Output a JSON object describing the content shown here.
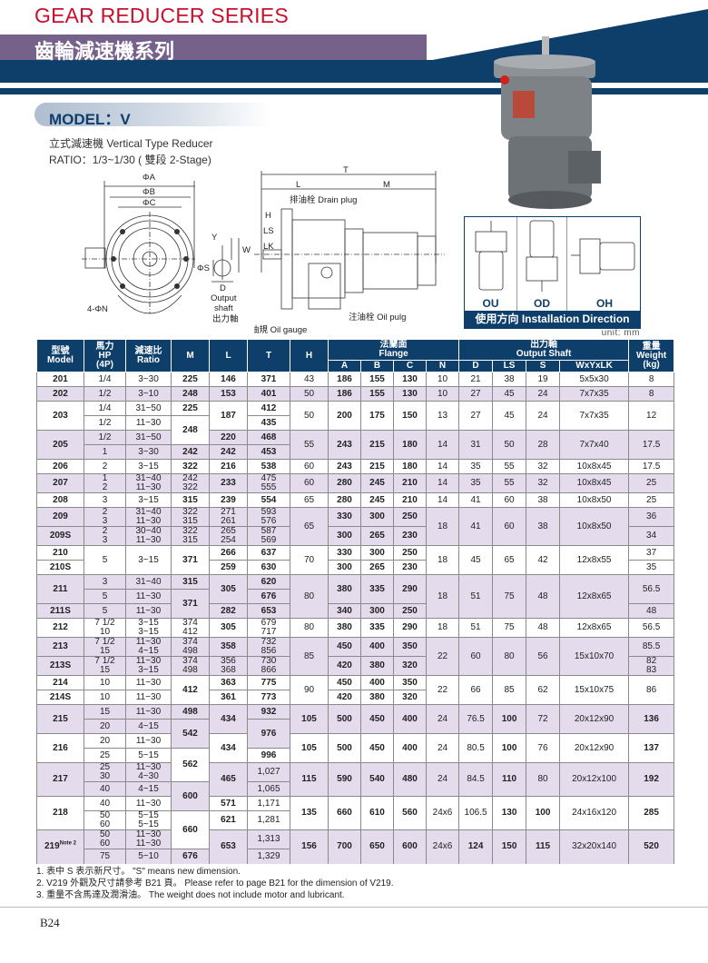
{
  "header": {
    "title_en": "GEAR REDUCER SERIES",
    "title_zh": "齒輪減速機系列"
  },
  "model": {
    "title": "MODEL：V",
    "subtitle": "立式減速機 Vertical Type Reducer",
    "ratio": "RATIO：1/3~1/30 ( 雙段 2-Stage)"
  },
  "diagram": {
    "front": {
      "phiA": "ΦA",
      "phiB": "ΦB",
      "phiC": "ΦC",
      "holes": "4-ΦN"
    },
    "shaft": {
      "Y": "Y",
      "W": "W",
      "S": "ΦS",
      "D": "D",
      "label_en1": "Output",
      "label_en2": "shaft",
      "label_zh": "出力軸"
    },
    "side": {
      "T": "T",
      "L": "L",
      "M": "M",
      "H": "H",
      "LS": "LS",
      "LK": "LK",
      "drain": "排油栓 Drain plug",
      "gauge": "油規 Oil gauge",
      "pulg": "注油栓 Oil pulg"
    }
  },
  "installation": {
    "codes": [
      "OU",
      "OD",
      "OH"
    ],
    "title": "使用方向 Installation Direction"
  },
  "unit": "unit: mm",
  "colors": {
    "navy": "#0e3f6b",
    "purple": "#76618a",
    "red": "#c8102e",
    "shade": "#e4dced"
  },
  "table": {
    "header_top": [
      "型號\nModel",
      "馬力\nHP\n(4P)",
      "減速比\nRatio",
      "M",
      "L",
      "T",
      "H",
      "法蘭面\nFlange",
      "出力軸\nOutput Shaft",
      "重量\nWeight\n(kg)"
    ],
    "header_sub": [
      "A",
      "B",
      "C",
      "N",
      "D",
      "LS",
      "S",
      "WxYxLK"
    ],
    "rows": [
      {
        "s": 0,
        "c": [
          "201",
          "1/4",
          "3~30",
          "225",
          "146",
          "371",
          "43",
          "186",
          "155",
          "130",
          "10",
          "21",
          "38",
          "19",
          "5x5x30",
          "8"
        ]
      },
      {
        "s": 1,
        "c": [
          "202",
          "1/2",
          "3~10",
          "248",
          "153",
          "401",
          "50",
          "186",
          "155",
          "130",
          "10",
          "27",
          "45",
          "24",
          "7x7x35",
          "8"
        ]
      },
      {
        "s": 0,
        "c": [
          [
            "203",
            2
          ],
          "1/4",
          "31~50",
          "225",
          [
            "187",
            2
          ],
          "412",
          [
            "50",
            2
          ],
          [
            "200",
            2
          ],
          [
            "175",
            2
          ],
          [
            "150",
            2
          ],
          [
            "13",
            2
          ],
          [
            "27",
            2
          ],
          [
            "45",
            2
          ],
          [
            "24",
            2
          ],
          [
            "7x7x35",
            2
          ],
          [
            "12",
            2
          ]
        ]
      },
      {
        "s": 0,
        "c": [
          "1/2",
          "11~30",
          [
            "248",
            2
          ],
          "435"
        ]
      },
      {
        "s": 1,
        "c": [
          [
            "205",
            2
          ],
          "1/2",
          "31~50",
          "220",
          "468",
          [
            "55",
            2
          ],
          [
            "243",
            2
          ],
          [
            "215",
            2
          ],
          [
            "180",
            2
          ],
          [
            "14",
            2
          ],
          [
            "31",
            2
          ],
          [
            "50",
            2
          ],
          [
            "28",
            2
          ],
          [
            "7x7x40",
            2
          ],
          [
            "17.5",
            2
          ]
        ]
      },
      {
        "s": 1,
        "c": [
          "1",
          "3~30",
          "242",
          "242",
          "453"
        ]
      },
      {
        "s": 0,
        "c": [
          "206",
          "2",
          "3~15",
          "322",
          "216",
          "538",
          "60",
          "243",
          "215",
          "180",
          "14",
          "35",
          "55",
          "32",
          "10x8x45",
          "17.5"
        ]
      },
      {
        "s": 1,
        "c": [
          "207",
          "1\n2",
          "31~40\n11~30",
          "242\n322",
          "233",
          "475\n555",
          "60",
          "280",
          "245",
          "210",
          "14",
          "35",
          "55",
          "32",
          "10x8x45",
          "25"
        ]
      },
      {
        "s": 0,
        "c": [
          "208",
          "3",
          "3~15",
          "315",
          "239",
          "554",
          "65",
          "280",
          "245",
          "210",
          "14",
          "41",
          "60",
          "38",
          "10x8x50",
          "25"
        ]
      },
      {
        "s": 1,
        "c": [
          "209",
          "2\n3",
          "31~40\n11~30",
          "322\n315",
          "271\n261",
          "593\n576",
          [
            "65",
            2
          ],
          "330",
          "300",
          "250",
          [
            "18",
            2
          ],
          [
            "41",
            2
          ],
          [
            "60",
            2
          ],
          [
            "38",
            2
          ],
          [
            "10x8x50",
            2
          ],
          "36"
        ]
      },
      {
        "s": 1,
        "c": [
          "209S",
          "2\n3",
          "30~40\n11~30",
          "322\n315",
          "265\n254",
          "587\n569",
          "300",
          "265",
          "230",
          "34"
        ]
      },
      {
        "s": 0,
        "c": [
          "210",
          [
            "5",
            2
          ],
          [
            "3~15",
            2
          ],
          [
            "371",
            2
          ],
          "266",
          "637",
          [
            "70",
            2
          ],
          "330",
          "300",
          "250",
          [
            "18",
            2
          ],
          [
            "45",
            2
          ],
          [
            "65",
            2
          ],
          [
            "42",
            2
          ],
          [
            "12x8x55",
            2
          ],
          "37"
        ]
      },
      {
        "s": 0,
        "c": [
          "210S",
          "259",
          "630",
          "300",
          "265",
          "230",
          "35"
        ]
      },
      {
        "s": 1,
        "c": [
          [
            "211",
            2
          ],
          "3",
          "31~40",
          "315",
          [
            "305",
            2
          ],
          "620",
          [
            "80",
            3
          ],
          [
            "380",
            2
          ],
          [
            "335",
            2
          ],
          [
            "290",
            2
          ],
          [
            "18",
            3
          ],
          [
            "51",
            3
          ],
          [
            "75",
            3
          ],
          [
            "48",
            3
          ],
          [
            "12x8x65",
            3
          ],
          [
            "56.5",
            2
          ]
        ]
      },
      {
        "s": 1,
        "c": [
          "5",
          "11~30",
          [
            "371",
            2
          ],
          "676"
        ]
      },
      {
        "s": 1,
        "c": [
          "211S",
          "5",
          "11~30",
          "282",
          "653",
          "340",
          "300",
          "250",
          "48"
        ]
      },
      {
        "s": 0,
        "c": [
          "212",
          "7 1/2\n10",
          "3~15\n3~15",
          "374\n412",
          "305",
          "679\n717",
          "80",
          "380",
          "335",
          "290",
          "18",
          "51",
          "75",
          "48",
          "12x8x65",
          "56.5"
        ]
      },
      {
        "s": 1,
        "c": [
          "213",
          "7 1/2\n15",
          "11~30\n4~15",
          "374\n498",
          "358",
          "732\n856",
          [
            "85",
            2
          ],
          "450",
          "400",
          "350",
          [
            "22",
            2
          ],
          [
            "60",
            2
          ],
          [
            "80",
            2
          ],
          [
            "56",
            2
          ],
          [
            "15x10x70",
            2
          ],
          "85.5"
        ]
      },
      {
        "s": 1,
        "c": [
          "213S",
          "7 1/2\n15",
          "11~30\n3~15",
          "374\n498",
          "356\n368",
          "730\n866",
          "420",
          "380",
          "320",
          "82\n83"
        ]
      },
      {
        "s": 0,
        "c": [
          "214",
          "10",
          "11~30",
          [
            "412",
            2
          ],
          "363",
          "775",
          [
            "90",
            2
          ],
          "450",
          "400",
          "350",
          [
            "22",
            2
          ],
          [
            "66",
            2
          ],
          [
            "85",
            2
          ],
          [
            "62",
            2
          ],
          [
            "15x10x75",
            2
          ],
          [
            "86",
            2
          ]
        ]
      },
      {
        "s": 0,
        "c": [
          "214S",
          "10",
          "11~30",
          "361",
          "773",
          "420",
          "380",
          "320"
        ]
      },
      {
        "s": 1,
        "c": [
          [
            "215",
            2
          ],
          "15",
          "11~30",
          "498",
          [
            "434",
            2
          ],
          "932",
          [
            "105",
            2
          ],
          [
            "500",
            2
          ],
          [
            "450",
            2
          ],
          [
            "400",
            2
          ],
          [
            "24",
            2
          ],
          [
            "76.5",
            2
          ],
          [
            "100",
            2
          ],
          [
            "72",
            2
          ],
          [
            "20x12x90",
            2
          ],
          [
            "136",
            2
          ]
        ]
      },
      {
        "s": 1,
        "c": [
          "20",
          "4~15",
          [
            "542",
            2
          ],
          [
            "976",
            2
          ]
        ]
      },
      {
        "s": 0,
        "c": [
          [
            "216",
            2
          ],
          "20",
          "11~30",
          [
            "434",
            2
          ],
          [
            "105",
            2
          ],
          [
            "500",
            2
          ],
          [
            "450",
            2
          ],
          [
            "400",
            2
          ],
          [
            "24",
            2
          ],
          [
            "80.5",
            2
          ],
          [
            "100",
            2
          ],
          [
            "76",
            2
          ],
          [
            "20x12x90",
            2
          ],
          [
            "137",
            2
          ]
        ]
      },
      {
        "s": 0,
        "c": [
          "25",
          "5~15",
          [
            "562",
            2
          ],
          "996"
        ]
      },
      {
        "s": 1,
        "c": [
          [
            "217",
            2
          ],
          "25\n30",
          "11~30\n4~30",
          [
            "465",
            2
          ],
          "1,027",
          [
            "115",
            2
          ],
          [
            "590",
            2
          ],
          [
            "540",
            2
          ],
          [
            "480",
            2
          ],
          [
            "24",
            2
          ],
          [
            "84.5",
            2
          ],
          [
            "110",
            2
          ],
          [
            "80",
            2
          ],
          [
            "20x12x100",
            2
          ],
          [
            "192",
            2
          ]
        ]
      },
      {
        "s": 1,
        "c": [
          "40",
          "4~15",
          [
            "600",
            2
          ],
          "1,065"
        ]
      },
      {
        "s": 0,
        "c": [
          [
            "218",
            2
          ],
          "40",
          "11~30",
          "571",
          "1,171",
          [
            "135",
            2
          ],
          [
            "660",
            2
          ],
          [
            "610",
            2
          ],
          [
            "560",
            2
          ],
          [
            "24x6",
            2
          ],
          [
            "106.5",
            2
          ],
          [
            "130",
            2
          ],
          [
            "100",
            2
          ],
          [
            "24x16x120",
            2
          ],
          [
            "285",
            2
          ]
        ]
      },
      {
        "s": 0,
        "c": [
          "50\n60",
          "5~15\n5~15",
          [
            "660",
            2
          ],
          "621",
          "1,281"
        ]
      },
      {
        "s": 1,
        "c": [
          [
            "219",
            2
          ],
          "50\n60",
          "11~30\n11~30",
          [
            "653",
            2
          ],
          "1,313",
          [
            "156",
            2
          ],
          [
            "700",
            2
          ],
          [
            "650",
            2
          ],
          [
            "600",
            2
          ],
          [
            "24x6",
            2
          ],
          [
            "124",
            2
          ],
          [
            "150",
            2
          ],
          [
            "115",
            2
          ],
          [
            "32x20x140",
            2
          ],
          [
            "520",
            2
          ]
        ]
      },
      {
        "s": 1,
        "c": [
          "75",
          "5~10",
          "676",
          "1,329"
        ]
      }
    ],
    "note_sup": "Note 2"
  },
  "notes": [
    "1. 表中 S 表示新尺寸。 \"S\" means new dimension.",
    "2. V219 外觀及尺寸請參考 B21 頁。 Please refer to page B21 for the dimension of V219.",
    "3. 重量不含馬達及潤滑油。 The weight does not include motor and lubricant."
  ],
  "page": "B24"
}
